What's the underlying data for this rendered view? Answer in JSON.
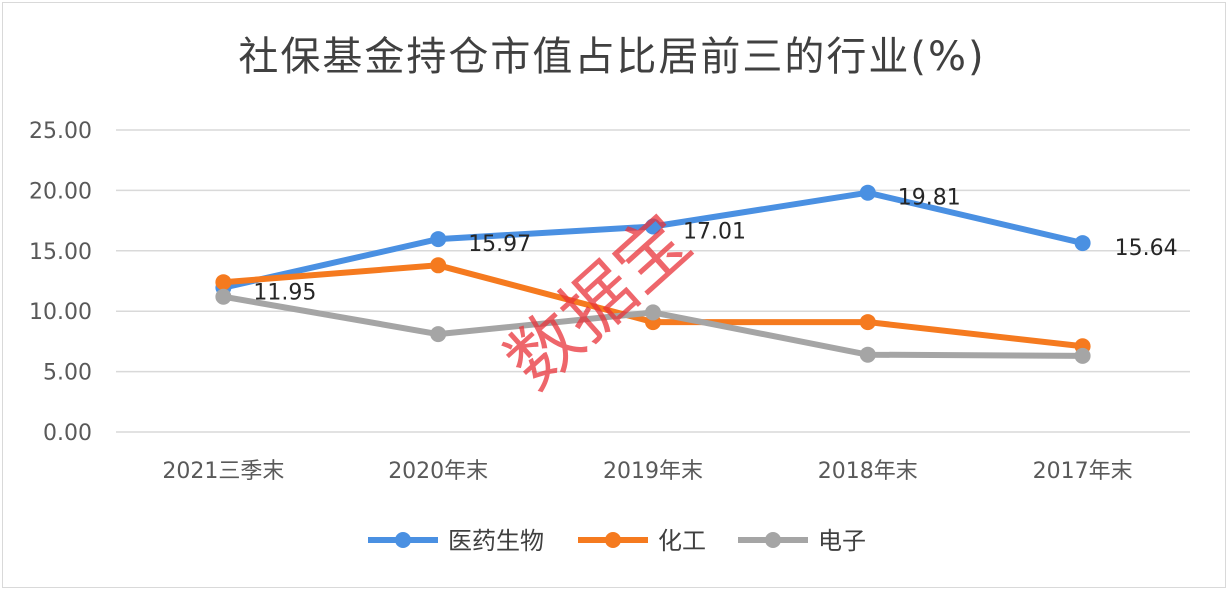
{
  "chart_data": {
    "type": "line",
    "title": "社保基金持仓市值占比居前三的行业(%)",
    "categories": [
      "2021三季末",
      "2020年末",
      "2019年末",
      "2018年末",
      "2017年末"
    ],
    "ylim": [
      0,
      25
    ],
    "yticks": [
      "0.00",
      "5.00",
      "10.00",
      "15.00",
      "20.00",
      "25.00"
    ],
    "grid": true,
    "legend_position": "bottom",
    "series": [
      {
        "name": "医药生物",
        "color": "#4a90e2",
        "values": [
          11.95,
          15.97,
          17.01,
          19.81,
          15.64
        ],
        "labels": [
          "11.95",
          "15.97",
          "17.01",
          "19.81",
          "15.64"
        ]
      },
      {
        "name": "化工",
        "color": "#f57a1f",
        "values": [
          12.4,
          13.8,
          9.1,
          9.1,
          7.1
        ]
      },
      {
        "name": "电子",
        "color": "#a5a5a5",
        "values": [
          11.2,
          8.1,
          9.9,
          6.4,
          6.3
        ]
      }
    ],
    "watermark": "数据宝"
  }
}
